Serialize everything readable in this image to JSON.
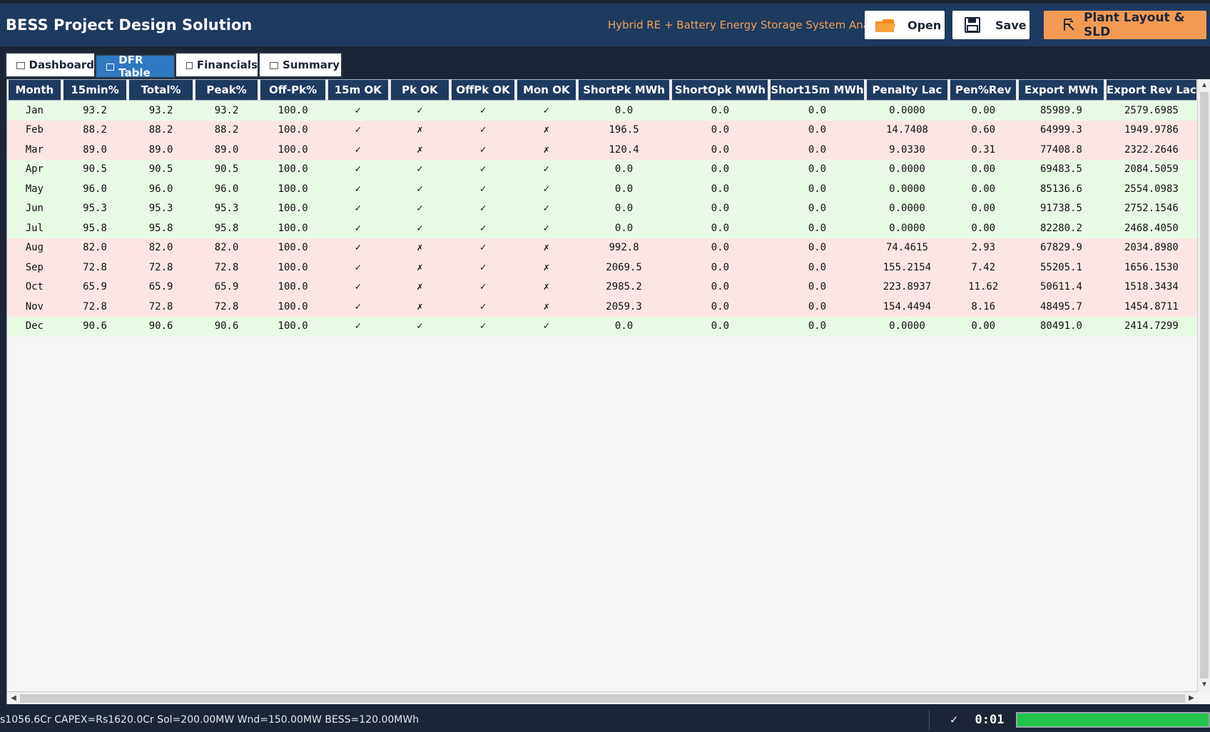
{
  "header": {
    "title": "BESS Project Design Solution",
    "subtitle": "Hybrid RE + Battery Energy Storage System Analyser",
    "open_label": "Open",
    "save_label": "Save",
    "layout_label": "Plant Layout & SLD"
  },
  "tabs": [
    {
      "label": "Dashboard",
      "active": false
    },
    {
      "label": "DFR Table",
      "active": true
    },
    {
      "label": "Financials",
      "active": false
    },
    {
      "label": "Summary",
      "active": false
    }
  ],
  "table": {
    "columns": [
      "Month",
      "15min%",
      "Total%",
      "Peak%",
      "Off-Pk%",
      "15m OK",
      "Pk OK",
      "OffPk OK",
      "Mon OK",
      "ShortPk MWh",
      "ShortOpk MWh",
      "Short15m MWh",
      "Penalty Lac",
      "Pen%Rev",
      "Export MWh",
      "Export Rev Lac"
    ],
    "rows": [
      {
        "status": "ok",
        "cells": [
          "Jan",
          "93.2",
          "93.2",
          "93.2",
          "100.0",
          "✓",
          "✓",
          "✓",
          "✓",
          "0.0",
          "0.0",
          "0.0",
          "0.0000",
          "0.00",
          "85989.9",
          "2579.6985"
        ]
      },
      {
        "status": "bad",
        "cells": [
          "Feb",
          "88.2",
          "88.2",
          "88.2",
          "100.0",
          "✓",
          "✗",
          "✓",
          "✗",
          "196.5",
          "0.0",
          "0.0",
          "14.7408",
          "0.60",
          "64999.3",
          "1949.9786"
        ]
      },
      {
        "status": "bad",
        "cells": [
          "Mar",
          "89.0",
          "89.0",
          "89.0",
          "100.0",
          "✓",
          "✗",
          "✓",
          "✗",
          "120.4",
          "0.0",
          "0.0",
          "9.0330",
          "0.31",
          "77408.8",
          "2322.2646"
        ]
      },
      {
        "status": "ok",
        "cells": [
          "Apr",
          "90.5",
          "90.5",
          "90.5",
          "100.0",
          "✓",
          "✓",
          "✓",
          "✓",
          "0.0",
          "0.0",
          "0.0",
          "0.0000",
          "0.00",
          "69483.5",
          "2084.5059"
        ]
      },
      {
        "status": "ok",
        "cells": [
          "May",
          "96.0",
          "96.0",
          "96.0",
          "100.0",
          "✓",
          "✓",
          "✓",
          "✓",
          "0.0",
          "0.0",
          "0.0",
          "0.0000",
          "0.00",
          "85136.6",
          "2554.0983"
        ]
      },
      {
        "status": "ok",
        "cells": [
          "Jun",
          "95.3",
          "95.3",
          "95.3",
          "100.0",
          "✓",
          "✓",
          "✓",
          "✓",
          "0.0",
          "0.0",
          "0.0",
          "0.0000",
          "0.00",
          "91738.5",
          "2752.1546"
        ]
      },
      {
        "status": "ok",
        "cells": [
          "Jul",
          "95.8",
          "95.8",
          "95.8",
          "100.0",
          "✓",
          "✓",
          "✓",
          "✓",
          "0.0",
          "0.0",
          "0.0",
          "0.0000",
          "0.00",
          "82280.2",
          "2468.4050"
        ]
      },
      {
        "status": "bad",
        "cells": [
          "Aug",
          "82.0",
          "82.0",
          "82.0",
          "100.0",
          "✓",
          "✗",
          "✓",
          "✗",
          "992.8",
          "0.0",
          "0.0",
          "74.4615",
          "2.93",
          "67829.9",
          "2034.8980"
        ]
      },
      {
        "status": "bad",
        "cells": [
          "Sep",
          "72.8",
          "72.8",
          "72.8",
          "100.0",
          "✓",
          "✗",
          "✓",
          "✗",
          "2069.5",
          "0.0",
          "0.0",
          "155.2154",
          "7.42",
          "55205.1",
          "1656.1530"
        ]
      },
      {
        "status": "bad",
        "cells": [
          "Oct",
          "65.9",
          "65.9",
          "65.9",
          "100.0",
          "✓",
          "✗",
          "✓",
          "✗",
          "2985.2",
          "0.0",
          "0.0",
          "223.8937",
          "11.62",
          "50611.4",
          "1518.3434"
        ]
      },
      {
        "status": "bad",
        "cells": [
          "Nov",
          "72.8",
          "72.8",
          "72.8",
          "100.0",
          "✓",
          "✗",
          "✓",
          "✗",
          "2059.3",
          "0.0",
          "0.0",
          "154.4494",
          "8.16",
          "48495.7",
          "1454.8711"
        ]
      },
      {
        "status": "ok",
        "cells": [
          "Dec",
          "90.6",
          "90.6",
          "90.6",
          "100.0",
          "✓",
          "✓",
          "✓",
          "✓",
          "0.0",
          "0.0",
          "0.0",
          "0.0000",
          "0.00",
          "80491.0",
          "2414.7299"
        ]
      }
    ]
  },
  "status_bar": {
    "summary": "s1056.6Cr  CAPEX=Rs1620.0Cr  Sol=200.00MW  Wnd=150.00MW  BESS=120.00MWh",
    "check": "✓",
    "timer": "0:01",
    "progress": 1.0
  },
  "colors": {
    "header_bg": "#1d3a5f",
    "accent_orange": "#f29a54",
    "tab_active": "#2f78c2",
    "row_ok": "#e7fbe4",
    "row_bad": "#fde5e5",
    "progress_fill": "#21c44a"
  },
  "icons": {
    "open": "folder-icon",
    "save": "floppy-disk-icon",
    "layout": "layout-icon",
    "tab_dashboard": "chart-icon",
    "tab_dfr": "table-icon",
    "tab_financials": "calculator-icon",
    "tab_summary": "document-icon"
  }
}
